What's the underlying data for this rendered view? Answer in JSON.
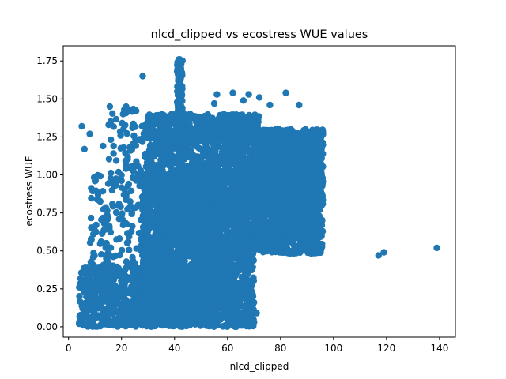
{
  "chart_data": {
    "type": "scatter",
    "title": "nlcd_clipped vs ecostress WUE values",
    "xlabel": "nlcd_clipped",
    "ylabel": "ecostress WUE",
    "xlim": [
      -2,
      146
    ],
    "ylim": [
      -0.068,
      1.85
    ],
    "xticks": [
      0,
      20,
      40,
      60,
      80,
      100,
      120,
      140
    ],
    "xtick_labels": [
      "0",
      "20",
      "40",
      "60",
      "80",
      "100",
      "120",
      "140"
    ],
    "yticks": [
      0.0,
      0.25,
      0.5,
      0.75,
      1.0,
      1.25,
      1.5,
      1.75
    ],
    "ytick_labels": [
      "0.00",
      "0.25",
      "0.50",
      "0.75",
      "1.00",
      "1.25",
      "1.50",
      "1.75"
    ],
    "grid": false,
    "legend": "none",
    "marker_color": "#1f77b4",
    "clusters": [
      {
        "x_range": [
          4,
          30
        ],
        "y_range": [
          0.0,
          0.4
        ],
        "count": 500
      },
      {
        "x_range": [
          8,
          30
        ],
        "y_range": [
          0.4,
          1.0
        ],
        "count": 160
      },
      {
        "x_range": [
          15,
          32
        ],
        "y_range": [
          1.0,
          1.45
        ],
        "count": 80
      },
      {
        "x_range": [
          28,
          70
        ],
        "y_range": [
          0.0,
          1.0
        ],
        "count": 3200
      },
      {
        "x_range": [
          30,
          72
        ],
        "y_range": [
          1.0,
          1.4
        ],
        "count": 900
      },
      {
        "x_range": [
          70,
          96
        ],
        "y_range": [
          0.78,
          1.3
        ],
        "count": 1700
      },
      {
        "x_range": [
          70,
          96
        ],
        "y_range": [
          0.48,
          0.78
        ],
        "count": 500
      },
      {
        "x_range": [
          41,
          43
        ],
        "y_range": [
          1.2,
          1.76
        ],
        "count": 160
      }
    ],
    "points": [
      {
        "x": 5,
        "y": 1.32
      },
      {
        "x": 6,
        "y": 1.17
      },
      {
        "x": 8,
        "y": 1.27
      },
      {
        "x": 13,
        "y": 1.19
      },
      {
        "x": 17,
        "y": 1.19
      },
      {
        "x": 28,
        "y": 1.65
      },
      {
        "x": 10,
        "y": 0.96
      },
      {
        "x": 6,
        "y": 0.23
      },
      {
        "x": 4,
        "y": 0.02
      },
      {
        "x": 42,
        "y": 1.76
      },
      {
        "x": 56,
        "y": 1.53
      },
      {
        "x": 62,
        "y": 1.54
      },
      {
        "x": 68,
        "y": 1.53
      },
      {
        "x": 72,
        "y": 1.51
      },
      {
        "x": 76,
        "y": 1.46
      },
      {
        "x": 82,
        "y": 1.54
      },
      {
        "x": 87,
        "y": 1.46
      },
      {
        "x": 55,
        "y": 1.47
      },
      {
        "x": 66,
        "y": 1.49
      },
      {
        "x": 85,
        "y": 1.02
      },
      {
        "x": 60,
        "y": 0.05
      },
      {
        "x": 71,
        "y": 0.09
      },
      {
        "x": 70,
        "y": 0.03
      },
      {
        "x": 117,
        "y": 0.47
      },
      {
        "x": 119,
        "y": 0.49
      },
      {
        "x": 139,
        "y": 0.52
      }
    ]
  }
}
